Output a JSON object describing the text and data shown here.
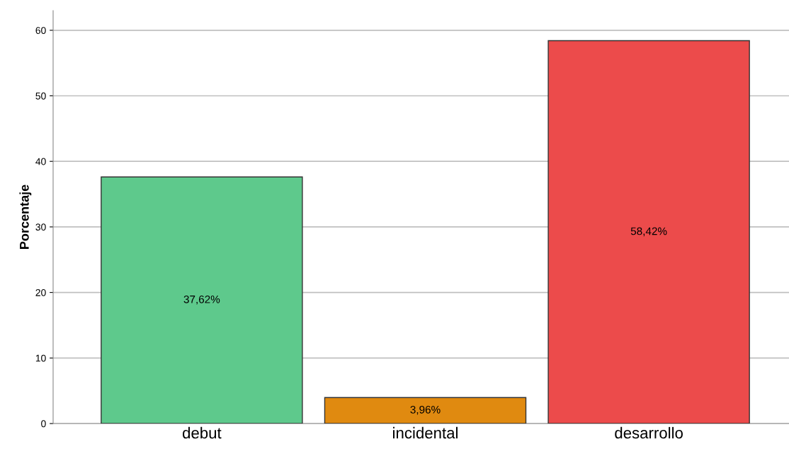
{
  "chart_data": {
    "type": "bar",
    "ylabel": "Porcentaje",
    "categories": [
      "debut",
      "incidental",
      "desarrollo"
    ],
    "values": [
      37.62,
      3.96,
      58.42
    ],
    "value_labels": [
      "37,62%",
      "3,96%",
      "58,42%"
    ],
    "colors": [
      "#5ec98c",
      "#e08a10",
      "#ec4b4b"
    ],
    "ylim": [
      0,
      63
    ],
    "yticks": [
      0,
      10,
      20,
      30,
      40,
      50,
      60
    ],
    "grid": "y"
  }
}
